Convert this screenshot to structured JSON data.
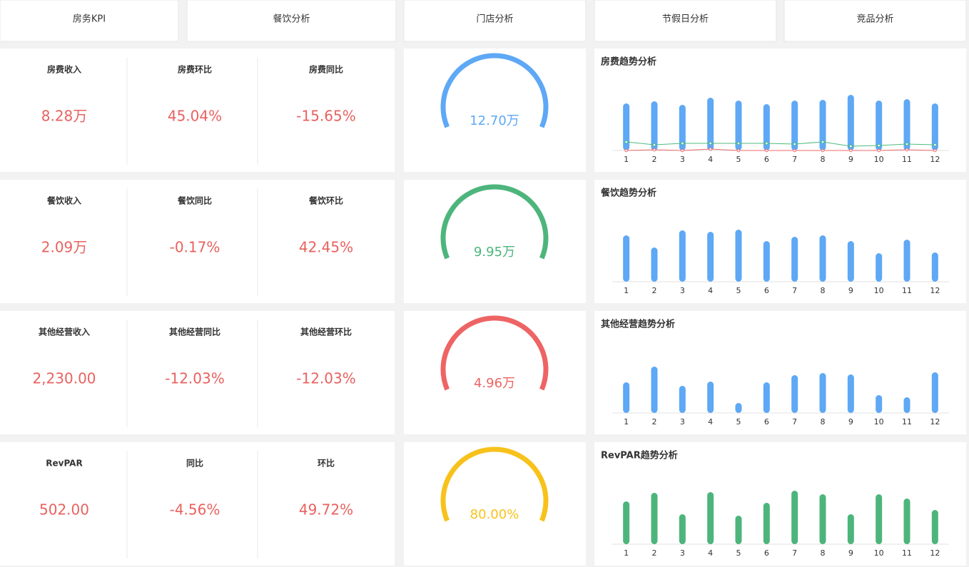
{
  "tabs": [
    "房务KPI",
    "餐饮分析",
    "门店分析",
    "节假日分析",
    "竞品分析"
  ],
  "rows": [
    {
      "kpis": [
        {
          "label": "房费收入",
          "value": "8.28万"
        },
        {
          "label": "房费环比",
          "value": "45.04%"
        },
        {
          "label": "房费同比",
          "value": "-15.65%"
        }
      ],
      "gauge": {
        "value": "12.70万",
        "color": "#5ea8f5"
      },
      "trend": {
        "type": "bar",
        "title": "房费趋势分析",
        "categories": [
          "1",
          "2",
          "3",
          "4",
          "5",
          "6",
          "7",
          "8",
          "9",
          "10",
          "11",
          "12"
        ],
        "ylim": [
          0,
          100
        ],
        "series": [
          {
            "type": "bar",
            "color": "#5ea8f5",
            "values": [
              66,
              69,
              64,
              74,
              70,
              65,
              70,
              71,
              78,
              70,
              72,
              66
            ]
          },
          {
            "type": "line",
            "color": "#4dbb7f",
            "values": [
              12,
              8,
              10,
              10,
              10,
              10,
              9,
              12,
              6,
              7,
              9,
              8
            ]
          },
          {
            "type": "line",
            "color": "#f06a6a",
            "values": [
              0,
              1,
              0,
              2,
              0,
              0,
              0,
              0,
              0,
              0,
              1,
              0
            ]
          }
        ]
      }
    },
    {
      "kpis": [
        {
          "label": "餐饮收入",
          "value": "2.09万"
        },
        {
          "label": "餐饮同比",
          "value": "-0.17%"
        },
        {
          "label": "餐饮环比",
          "value": "42.45%"
        }
      ],
      "gauge": {
        "value": "9.95万",
        "color": "#4db57c"
      },
      "trend": {
        "type": "bar",
        "title": "餐饮趋势分析",
        "categories": [
          "1",
          "2",
          "3",
          "4",
          "5",
          "6",
          "7",
          "8",
          "9",
          "10",
          "11",
          "12"
        ],
        "ylim": [
          0,
          100
        ],
        "series": [
          {
            "type": "bar",
            "color": "#5ea8f5",
            "values": [
              65,
              48,
              72,
              70,
              73,
              57,
              63,
              65,
              57,
              40,
              59,
              41
            ]
          }
        ]
      }
    },
    {
      "kpis": [
        {
          "label": "其他经营收入",
          "value": "2,230.00"
        },
        {
          "label": "其他经营同比",
          "value": "-12.03%"
        },
        {
          "label": "其他经营环比",
          "value": "-12.03%"
        }
      ],
      "gauge": {
        "value": "4.96万",
        "color": "#ee6464"
      },
      "trend": {
        "type": "bar",
        "title": "其他经营趋势分析",
        "categories": [
          "1",
          "2",
          "3",
          "4",
          "5",
          "6",
          "7",
          "8",
          "9",
          "10",
          "11",
          "12"
        ],
        "ylim": [
          0,
          100
        ],
        "series": [
          {
            "type": "bar",
            "color": "#5ea8f5",
            "values": [
              43,
              65,
              38,
              44,
              14,
              43,
              53,
              56,
              54,
              25,
              22,
              57
            ]
          }
        ]
      }
    },
    {
      "kpis": [
        {
          "label": "RevPAR",
          "value": "502.00"
        },
        {
          "label": "同比",
          "value": "-4.56%"
        },
        {
          "label": "环比",
          "value": "49.72%"
        }
      ],
      "gauge": {
        "value": "80.00%",
        "color": "#f8c21c"
      },
      "trend": {
        "type": "bar",
        "title": "RevPAR趋势分析",
        "categories": [
          "1",
          "2",
          "3",
          "4",
          "5",
          "6",
          "7",
          "8",
          "9",
          "10",
          "11",
          "12"
        ],
        "ylim": [
          0,
          100
        ],
        "series": [
          {
            "type": "bar",
            "color": "#4db57c",
            "values": [
              60,
              72,
              42,
              73,
              40,
              58,
              75,
              70,
              42,
              70,
              64,
              48
            ]
          }
        ]
      }
    }
  ]
}
